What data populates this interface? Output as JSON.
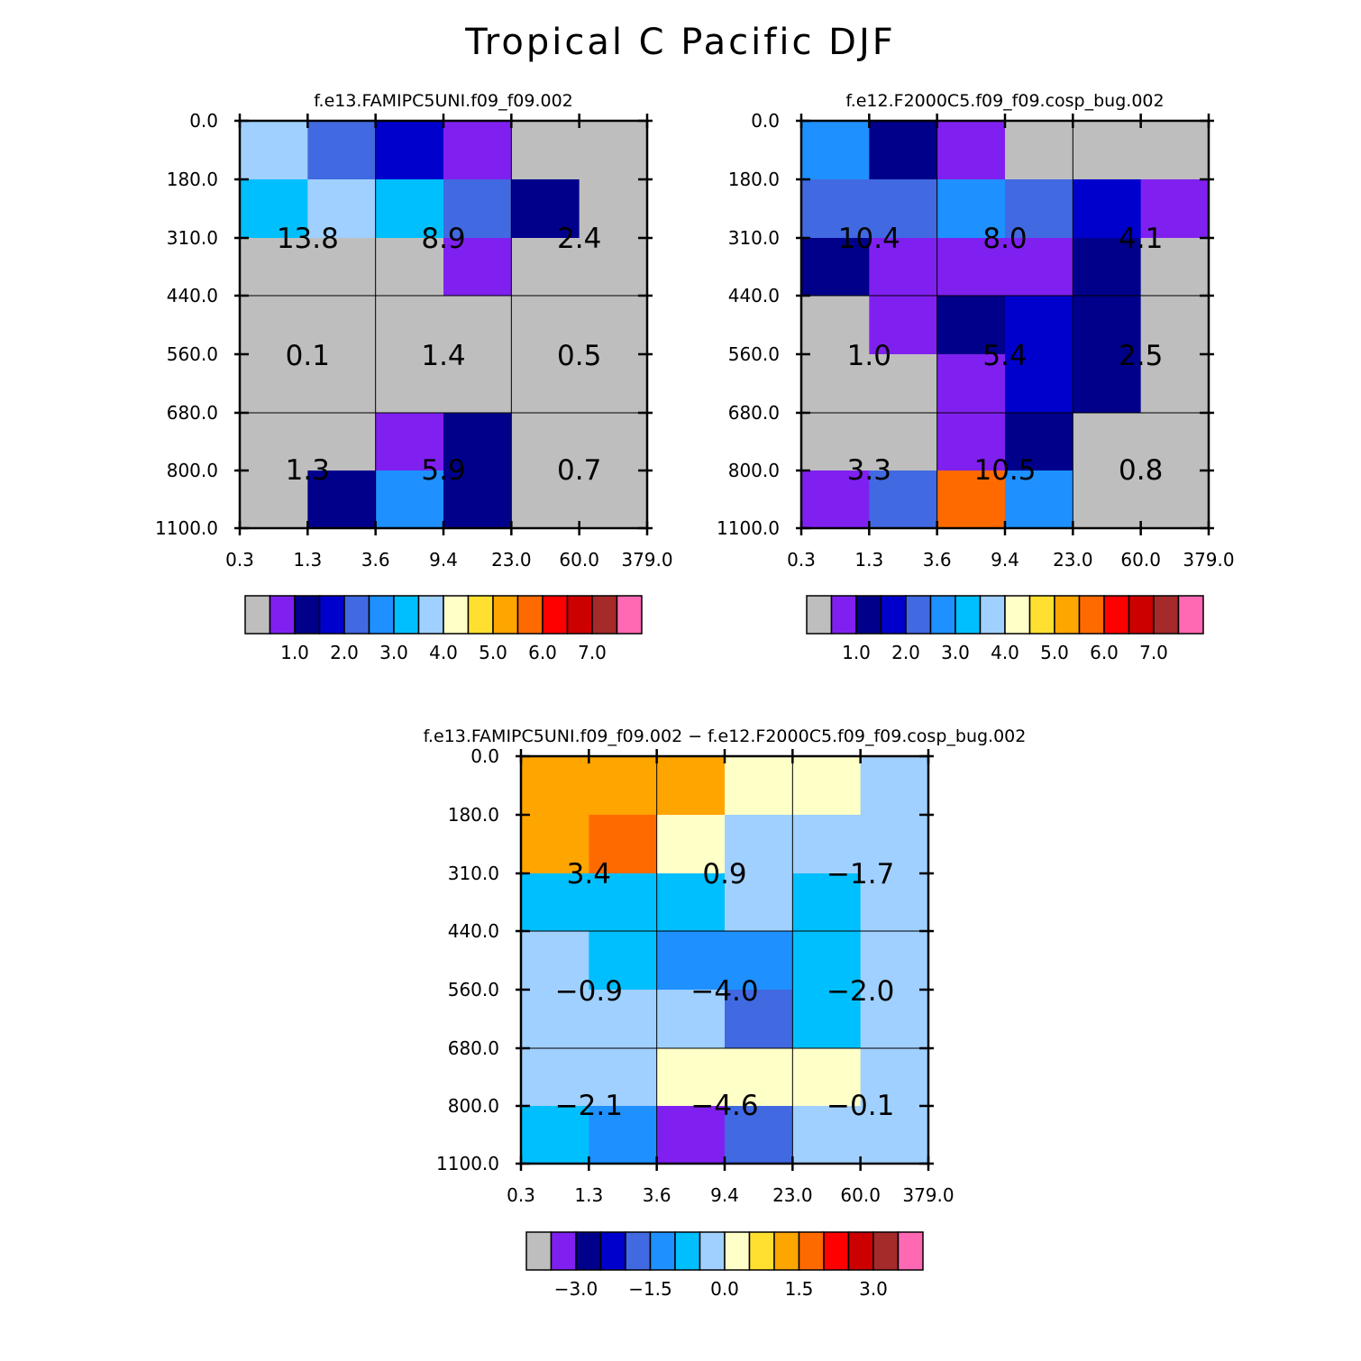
{
  "title": "Tropical C Pacific DJF",
  "colors": {
    "palette": [
      "#bebebe",
      "#8020f0",
      "#00008b",
      "#0000cd",
      "#4169e1",
      "#1e90ff",
      "#00bfff",
      "#a0d0ff",
      "#ffffc8",
      "#ffe030",
      "#ffa500",
      "#ff6a00",
      "#ff0000",
      "#cd0000",
      "#a52a2a",
      "#ff69b4"
    ],
    "grid": "#000000",
    "text": "#000000"
  },
  "chart_data": [
    {
      "type": "heatmap",
      "title": "f.e13.FAMIPC5UNI.f09_f09.002",
      "x_tick_labels": [
        "0.3",
        "1.3",
        "3.6",
        "9.4",
        "23.0",
        "60.0",
        "379.0"
      ],
      "y_tick_labels": [
        "0.0",
        "180.0",
        "310.0",
        "440.0",
        "560.0",
        "680.0",
        "800.0",
        "1100.0"
      ],
      "cell_color_index": [
        [
          7,
          4,
          3,
          1,
          0,
          0
        ],
        [
          6,
          7,
          6,
          4,
          2,
          0
        ],
        [
          0,
          0,
          0,
          1,
          0,
          0
        ],
        [
          0,
          0,
          0,
          0,
          0,
          0
        ],
        [
          0,
          0,
          0,
          0,
          0,
          0
        ],
        [
          0,
          0,
          1,
          2,
          0,
          0
        ],
        [
          0,
          2,
          5,
          2,
          0,
          0
        ]
      ],
      "group_values": [
        [
          "13.8",
          "8.9",
          "2.4"
        ],
        [
          "0.1",
          "1.4",
          "0.5"
        ],
        [
          "1.3",
          "5.9",
          "0.7"
        ]
      ],
      "colorbar": {
        "labels": [
          "1.0",
          "2.0",
          "3.0",
          "4.0",
          "5.0",
          "6.0",
          "7.0"
        ],
        "first_label_box": 1
      }
    },
    {
      "type": "heatmap",
      "title": "f.e12.F2000C5.f09_f09.cosp_bug.002",
      "x_tick_labels": [
        "0.3",
        "1.3",
        "3.6",
        "9.4",
        "23.0",
        "60.0",
        "379.0"
      ],
      "y_tick_labels": [
        "0.0",
        "180.0",
        "310.0",
        "440.0",
        "560.0",
        "680.0",
        "800.0",
        "1100.0"
      ],
      "cell_color_index": [
        [
          5,
          2,
          1,
          0,
          0,
          0
        ],
        [
          4,
          4,
          5,
          4,
          3,
          1
        ],
        [
          2,
          1,
          1,
          1,
          2,
          0
        ],
        [
          0,
          1,
          2,
          3,
          2,
          0
        ],
        [
          0,
          0,
          1,
          3,
          2,
          0
        ],
        [
          0,
          0,
          1,
          2,
          0,
          0
        ],
        [
          1,
          4,
          11,
          5,
          0,
          0
        ]
      ],
      "group_values": [
        [
          "10.4",
          "8.0",
          "4.1"
        ],
        [
          "1.0",
          "5.4",
          "2.5"
        ],
        [
          "3.3",
          "10.5",
          "0.8"
        ]
      ],
      "colorbar": {
        "labels": [
          "1.0",
          "2.0",
          "3.0",
          "4.0",
          "5.0",
          "6.0",
          "7.0"
        ],
        "first_label_box": 1
      }
    },
    {
      "type": "heatmap",
      "title": "f.e13.FAMIPC5UNI.f09_f09.002 - f.e12.F2000C5.f09_f09.cosp_bug.002",
      "x_tick_labels": [
        "0.3",
        "1.3",
        "3.6",
        "9.4",
        "23.0",
        "60.0",
        "379.0"
      ],
      "y_tick_labels": [
        "0.0",
        "180.0",
        "310.0",
        "440.0",
        "560.0",
        "680.0",
        "800.0",
        "1100.0"
      ],
      "cell_color_index": [
        [
          10,
          10,
          10,
          8,
          8,
          7
        ],
        [
          10,
          11,
          8,
          7,
          7,
          7
        ],
        [
          6,
          6,
          6,
          7,
          6,
          7
        ],
        [
          7,
          6,
          5,
          5,
          6,
          7
        ],
        [
          7,
          7,
          7,
          4,
          6,
          7
        ],
        [
          7,
          7,
          8,
          8,
          8,
          7
        ],
        [
          6,
          5,
          1,
          4,
          7,
          7
        ]
      ],
      "group_values": [
        [
          "3.4",
          "0.9",
          "-1.7"
        ],
        [
          "-0.9",
          "-4.0",
          "-2.0"
        ],
        [
          "-2.1",
          "-4.6",
          "-0.1"
        ]
      ],
      "colorbar": {
        "labels": [
          "-3.0",
          "-1.5",
          "0.0",
          "1.5",
          "3.0"
        ],
        "first_label_box": 1,
        "label_step": 3
      }
    }
  ]
}
